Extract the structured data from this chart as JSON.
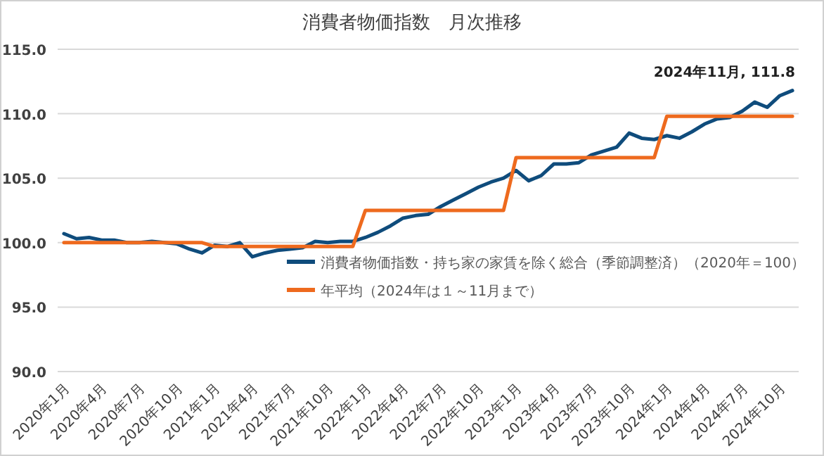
{
  "chart_data": {
    "type": "line",
    "title": "消費者物価指数　月次推移",
    "categories": [
      "2020年1月",
      null,
      null,
      "2020年4月",
      null,
      null,
      "2020年7月",
      null,
      null,
      "2020年10月",
      null,
      null,
      "2021年1月",
      null,
      null,
      "2021年4月",
      null,
      null,
      "2021年7月",
      null,
      null,
      "2021年10月",
      null,
      null,
      "2022年1月",
      null,
      null,
      "2022年4月",
      null,
      null,
      "2022年7月",
      null,
      null,
      "2022年10月",
      null,
      null,
      "2023年1月",
      null,
      null,
      "2023年4月",
      null,
      null,
      "2023年7月",
      null,
      null,
      "2023年10月",
      null,
      null,
      "2024年1月",
      null,
      null,
      "2024年4月",
      null,
      null,
      "2024年7月",
      null,
      null,
      "2024年10月",
      null
    ],
    "series": [
      {
        "name": "消費者物価指数・持ち家の家賃を除く総合（季節調整済）（2020年＝100）",
        "color": "#0f4c7c",
        "values": [
          100.7,
          100.3,
          100.4,
          100.2,
          100.2,
          100.0,
          100.0,
          100.1,
          100.0,
          99.9,
          99.5,
          99.2,
          99.8,
          99.7,
          100.0,
          98.9,
          99.2,
          99.4,
          99.5,
          99.6,
          100.1,
          100.0,
          100.1,
          100.1,
          100.4,
          100.8,
          101.3,
          101.9,
          102.1,
          102.2,
          102.8,
          103.3,
          103.8,
          104.3,
          104.7,
          105.0,
          105.6,
          104.8,
          105.2,
          106.1,
          106.1,
          106.2,
          106.8,
          107.1,
          107.4,
          108.5,
          108.1,
          108.0,
          108.3,
          108.1,
          108.6,
          109.2,
          109.6,
          109.7,
          110.2,
          110.9,
          110.5,
          111.4,
          111.8
        ]
      },
      {
        "name": "年平均（2024年は１～11月まで）",
        "color": "#ee6a1e",
        "values": [
          100.0,
          100.0,
          100.0,
          100.0,
          100.0,
          100.0,
          100.0,
          100.0,
          100.0,
          100.0,
          100.0,
          100.0,
          99.7,
          99.7,
          99.7,
          99.7,
          99.7,
          99.7,
          99.7,
          99.7,
          99.7,
          99.7,
          99.7,
          99.7,
          102.5,
          102.5,
          102.5,
          102.5,
          102.5,
          102.5,
          102.5,
          102.5,
          102.5,
          102.5,
          102.5,
          102.5,
          106.6,
          106.6,
          106.6,
          106.6,
          106.6,
          106.6,
          106.6,
          106.6,
          106.6,
          106.6,
          106.6,
          106.6,
          109.8,
          109.8,
          109.8,
          109.8,
          109.8,
          109.8,
          109.8,
          109.8,
          109.8,
          109.8,
          109.8
        ]
      }
    ],
    "ylim": [
      90,
      115
    ],
    "yticks": [
      {
        "value": 90,
        "label": "90.0"
      },
      {
        "value": 95,
        "label": "95.0"
      },
      {
        "value": 100,
        "label": "100.0"
      },
      {
        "value": 105,
        "label": "105.0"
      },
      {
        "value": 110,
        "label": "110.0"
      },
      {
        "value": 115,
        "label": "115.0"
      }
    ],
    "grid": "y",
    "legend": "bottom",
    "marker": "none",
    "line_style": "solid",
    "annotations": [
      "2024年11月, 111.8"
    ]
  }
}
